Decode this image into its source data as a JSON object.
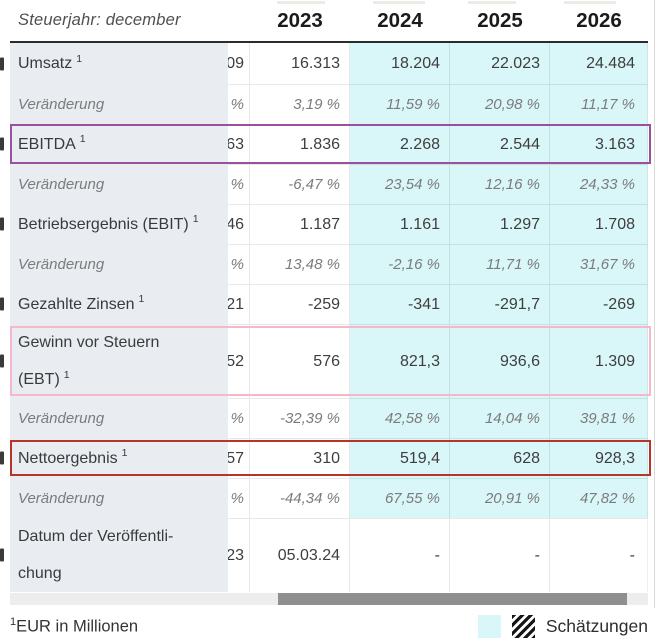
{
  "header": {
    "title": "Steuerjahr: december",
    "years": [
      "2023",
      "2024",
      "2025",
      "2026"
    ]
  },
  "table": {
    "rows": [
      {
        "label": "Umsatz",
        "sup": "1",
        "type": "data",
        "frag": "09",
        "edge_mark": true,
        "values": [
          "16.313",
          "18.204",
          "22.023",
          "24.484"
        ]
      },
      {
        "label": "Veränderung",
        "type": "change",
        "frag": "%",
        "values": [
          "3,19 %",
          "11,59 %",
          "20,98 %",
          "11,17 %"
        ]
      },
      {
        "label": "EBITDA",
        "sup": "1",
        "type": "data",
        "box": "purple",
        "frag": "63",
        "edge_mark": true,
        "values": [
          "1.836",
          "2.268",
          "2.544",
          "3.163"
        ]
      },
      {
        "label": "Veränderung",
        "type": "change",
        "frag": "%",
        "values": [
          "-6,47 %",
          "23,54 %",
          "12,16 %",
          "24,33 %"
        ]
      },
      {
        "label": "Betriebsergebnis (EBIT)",
        "sup": "1",
        "type": "data",
        "frag": "46",
        "edge_mark": true,
        "values": [
          "1.187",
          "1.161",
          "1.297",
          "1.708"
        ]
      },
      {
        "label": "Veränderung",
        "type": "change",
        "frag": "%",
        "values": [
          "13,48 %",
          "-2,16 %",
          "11,71 %",
          "31,67 %"
        ]
      },
      {
        "label": "Gezahlte Zinsen",
        "sup": "1",
        "type": "data",
        "frag": "21",
        "edge_mark": true,
        "values": [
          "-259",
          "-341",
          "-291,7",
          "-269"
        ]
      },
      {
        "label": "Gewinn vor Steuern\n(EBT)",
        "sup": "1",
        "type": "data",
        "tall": true,
        "box": "pink",
        "frag": "52",
        "edge_mark": true,
        "values": [
          "576",
          "821,3",
          "936,6",
          "1.309"
        ]
      },
      {
        "label": "Veränderung",
        "type": "change",
        "frag": "%",
        "values": [
          "-32,39 %",
          "42,58 %",
          "14,04 %",
          "39,81 %"
        ]
      },
      {
        "label": "Nettoergebnis",
        "sup": "1",
        "type": "data",
        "box": "red",
        "frag": "57",
        "edge_mark": true,
        "values": [
          "310",
          "519,4",
          "628",
          "928,3"
        ]
      },
      {
        "label": "Veränderung",
        "type": "change",
        "frag": "%",
        "values": [
          "-44,34 %",
          "67,55 %",
          "20,91 %",
          "47,82 %"
        ]
      },
      {
        "label": "Datum der Veröffentli-\nchung",
        "type": "data",
        "tall": true,
        "no_est": true,
        "frag": "23",
        "edge_mark": true,
        "values": [
          "05.03.24",
          "-",
          "-",
          "-"
        ]
      }
    ],
    "estimate_columns": [
      "2024",
      "2025",
      "2026"
    ]
  },
  "footer": {
    "footnote_sup": "1",
    "footnote": "EUR in Millionen",
    "legend_label": "Schätzungen"
  },
  "colors": {
    "estimate_bg": "#d9f6f8",
    "label_col_bg": "#e9edf2",
    "box_purple": "#9b4f9f",
    "box_pink": "#f5b8c8",
    "box_red": "#b5342c"
  }
}
